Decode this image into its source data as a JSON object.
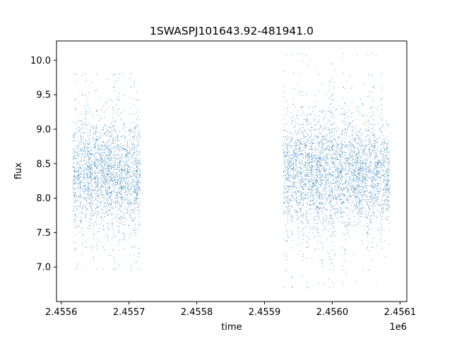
{
  "chart_data": {
    "type": "scatter",
    "title": "1SWASPJ101643.92-481941.0",
    "xlabel": "time",
    "ylabel": "flux",
    "offset_text": "1e6",
    "xlim": [
      2455593.0,
      2456110.0
    ],
    "ylim": [
      6.5,
      10.28
    ],
    "x_ticks": [
      {
        "value": 2455600,
        "label": "2.4556"
      },
      {
        "value": 2455700,
        "label": "2.4557"
      },
      {
        "value": 2455800,
        "label": "2.4558"
      },
      {
        "value": 2455900,
        "label": "2.4559"
      },
      {
        "value": 2456000,
        "label": "2.4560"
      },
      {
        "value": 2456100,
        "label": "2.4561"
      }
    ],
    "y_ticks": [
      {
        "value": 7.0,
        "label": "7.0"
      },
      {
        "value": 7.5,
        "label": "7.5"
      },
      {
        "value": 8.0,
        "label": "8.0"
      },
      {
        "value": 8.5,
        "label": "8.5"
      },
      {
        "value": 9.0,
        "label": "9.0"
      },
      {
        "value": 9.5,
        "label": "9.5"
      },
      {
        "value": 10.0,
        "label": "10.0"
      }
    ],
    "grid": false,
    "point_color": "#1f77b4",
    "observing_seasons": [
      {
        "x_range": [
          2455618,
          2455716
        ],
        "median_flux": 8.35,
        "typical_range": [
          7.6,
          9.1
        ],
        "extreme_range": [
          6.97,
          9.8
        ]
      },
      {
        "x_range": [
          2455928,
          2456084
        ],
        "median_flux": 8.35,
        "typical_range": [
          7.6,
          9.1
        ],
        "extreme_range": [
          6.7,
          10.1
        ]
      }
    ],
    "notes": "dense scatter of a few thousand flux measurements; points clustered in nightly vertical stripes"
  }
}
